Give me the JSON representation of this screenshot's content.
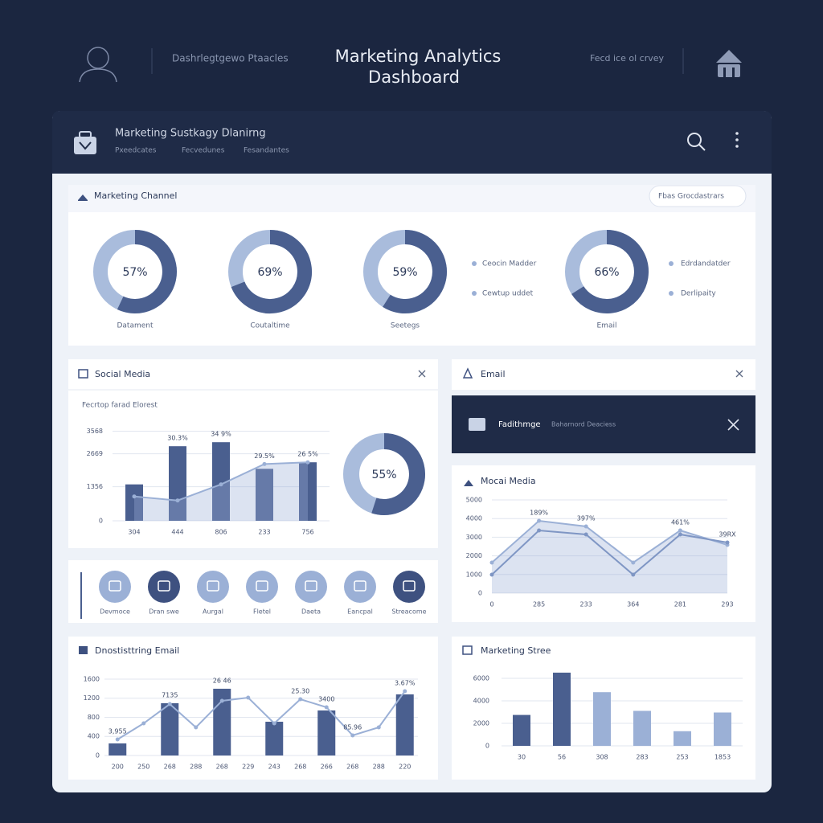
{
  "header": {
    "user_label": "Dashrlegtgewo Ptaacles",
    "title": [
      "Marketing Analytics",
      "Dashboard"
    ],
    "right_label": "Fecd ice ol crvey"
  },
  "panel": {
    "title": "Marketing Sustkagy Dlanirng",
    "tabs": [
      "Pxeedcates",
      "Fecvedunes",
      "Fesandantes"
    ]
  },
  "channel": {
    "title": "Marketing Channel",
    "button": "Fbas Grocdastrars",
    "legend_a": [
      "Ceocin Madder",
      "Cewtup uddet"
    ],
    "legend_b": [
      "Edrdandatder",
      "Derlipaity"
    ]
  },
  "email": {
    "title": "Email",
    "banner_title": "Fadithmge",
    "banner_text": "Baharnord Deaciess"
  },
  "icons": {
    "labels": [
      "Devmoce",
      "Dran swe",
      "Aurgal",
      "Fletel",
      "Daeta",
      "Eancpal",
      "Streacome"
    ]
  },
  "chart_data": [
    {
      "type": "donut",
      "values": [
        57
      ],
      "value_labels": [
        "57%"
      ],
      "categories": [
        "Datament"
      ],
      "color": "#4a5f8f"
    },
    {
      "type": "donut",
      "values": [
        69
      ],
      "value_labels": [
        "69%"
      ],
      "categories": [
        "Coutaltime"
      ],
      "color": "#4a5f8f"
    },
    {
      "type": "donut",
      "values": [
        59
      ],
      "value_labels": [
        "59%"
      ],
      "categories": [
        "Seetegs"
      ],
      "color": "#4a5f8f"
    },
    {
      "type": "donut",
      "values": [
        66
      ],
      "value_labels": [
        "66%"
      ],
      "categories": [
        "Email"
      ],
      "color": "#4a5f8f"
    },
    {
      "type": "bar",
      "title": "Social Media",
      "subtitle": "Fecrtop farad Elorest",
      "categories": [
        "304",
        "444",
        "806",
        "233",
        "756"
      ],
      "series": [
        {
          "color": "#4a5f8f",
          "values": [
            1450,
            2970,
            3130,
            2070,
            2330
          ]
        },
        {
          "color": "#9bb0d6",
          "line": true,
          "area": true,
          "values": [
            970,
            810,
            1450,
            2260,
            2330
          ]
        }
      ],
      "annotations": [
        null,
        "30.3%",
        "34 9%",
        "29.5%",
        "26 5%"
      ],
      "ylim": [
        0,
        4000
      ],
      "yticks": [
        0,
        1356,
        2669,
        3568
      ],
      "grid": true
    },
    {
      "type": "donut",
      "values": [
        55
      ],
      "value_labels": [
        "55%"
      ],
      "color": "#4a5f8f"
    },
    {
      "type": "line",
      "title": "Mocai Media",
      "categories": [
        "0",
        "285",
        "233",
        "364",
        "281",
        "293"
      ],
      "series": [
        {
          "color": "#9bb0d6",
          "area": true,
          "values": [
            1638,
            3879,
            3578,
            1638,
            3362,
            2586
          ]
        },
        {
          "color": "#7f96c4",
          "values": [
            991,
            3362,
            3147,
            991,
            3147,
            2716
          ]
        }
      ],
      "annotations": [
        null,
        "189%",
        "397%",
        null,
        "461%",
        "39RX"
      ],
      "ylim": [
        0,
        5000
      ],
      "yticks": [
        0,
        1000,
        2000,
        3000,
        4000,
        5000
      ],
      "grid": true
    },
    {
      "type": "bar",
      "title": "Dnostisttring Email",
      "categories": [
        "200",
        "250",
        "268",
        "288",
        "268",
        "229",
        "243",
        "268",
        "266",
        "268",
        "288",
        "220"
      ],
      "series": [
        {
          "color": "#4a5f8f",
          "values": [
            253,
            null,
            1095,
            null,
            1398,
            null,
            707,
            null,
            943,
            null,
            null,
            1280
          ]
        },
        {
          "color": "#9bb0d6",
          "line": true,
          "values": [
            337,
            673,
            1077,
            589,
            1145,
            1212,
            673,
            1178,
            1010,
            421,
            589,
            1347
          ]
        }
      ],
      "annotations": [
        "3,955",
        null,
        "7135",
        null,
        "26 46",
        null,
        null,
        "25.30",
        "3400",
        "85.96",
        null,
        "3.67%"
      ],
      "ylim": [
        0,
        1700
      ],
      "yticks": [
        0,
        400,
        800,
        1200,
        1600
      ],
      "grid": true
    },
    {
      "type": "bar",
      "title": "Marketing Stree",
      "categories": [
        "30",
        "56",
        "308",
        "283",
        "253",
        "1853"
      ],
      "series": [
        {
          "colors": [
            "#4a5f8f",
            "#4a5f8f",
            "#9bb0d6",
            "#9bb0d6",
            "#9bb0d6",
            "#9bb0d6"
          ],
          "values": [
            2747,
            6506,
            4771,
            3108,
            1301,
            2964
          ]
        }
      ],
      "ylim": [
        0,
        7000
      ],
      "yticks": [
        0,
        2000,
        4000,
        6000
      ],
      "grid": true
    }
  ]
}
